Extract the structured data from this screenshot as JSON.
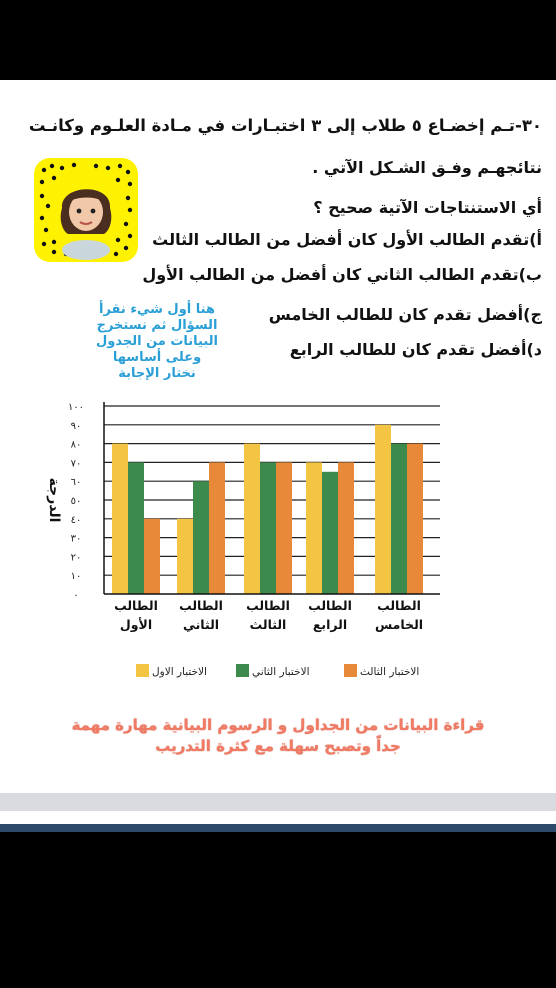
{
  "question": {
    "lines": [
      "٣٠-تـم إخضـاع ٥ طلاب إلى ٣ اختبـارات في مـادة العلـوم وكانـت",
      "نتائجهـم وفـق الشـكل الآتي .",
      "أي الاستنتاجات الآتية صحيح ؟",
      "أ)تقدم الطالب الأول كان أفضل من الطالب الثالث",
      "ب)تقدم الطالب الثاني كان أفضل من الطالب الأول",
      "ج)أفضل تقدم كان للطالب الخامس",
      "د)أفضل تقدم كان للطالب الرابع"
    ]
  },
  "teacher_note": {
    "lines": [
      "هنا أول شيء نقرأ",
      "السؤال ثم نستخرج",
      "البيانات من الجدول",
      "وعلى أساسها",
      "نختار الإجابة"
    ]
  },
  "footer_note": {
    "line1": "قراءة البيانات من الجداول و الرسوم البيانية مهارة مهمة",
    "line2": "جداً وتصبح سهلة مع كثرة التدريب"
  },
  "colors": {
    "test1": "#f4c542",
    "test2": "#3d8a4d",
    "test3": "#e8893a",
    "note": "#2a9fd6",
    "footer": "#f07a63"
  },
  "chart_data": {
    "type": "bar",
    "ylabel": "الدرجة",
    "ylim": [
      0,
      100
    ],
    "yticks": [
      "٠",
      "١٠",
      "٢٠",
      "٣٠",
      "٤٠",
      "٥٠",
      "٦٠",
      "٧٠",
      "٨٠",
      "٩٠",
      "١٠٠"
    ],
    "ytick_values": [
      0,
      10,
      20,
      30,
      40,
      50,
      60,
      70,
      80,
      90,
      100
    ],
    "grid": true,
    "legend_position": "bottom",
    "categories": [
      [
        "الطالب",
        "الأول"
      ],
      [
        "الطالب",
        "الثاني"
      ],
      [
        "الطالب",
        "الثالث"
      ],
      [
        "الطالب",
        "الرابع"
      ],
      [
        "الطالب",
        "الخامس"
      ]
    ],
    "series": [
      {
        "name": "الاختبار الاول",
        "color": "#f4c542",
        "values": [
          80,
          40,
          80,
          70,
          90
        ]
      },
      {
        "name": "الاختبار الثاني",
        "color": "#3d8a4d",
        "values": [
          70,
          60,
          70,
          65,
          80
        ]
      },
      {
        "name": "الاختبار الثالث",
        "color": "#e8893a",
        "values": [
          40,
          70,
          70,
          70,
          80
        ]
      }
    ]
  }
}
